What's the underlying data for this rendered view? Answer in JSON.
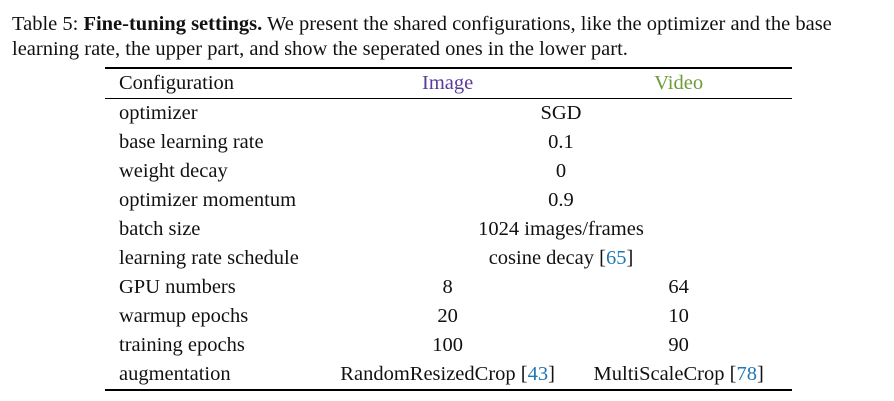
{
  "caption": {
    "label": "Table 5:",
    "title": "Fine-tuning settings.",
    "text": "We present the shared configurations, like the optimizer and the base learning rate, the upper part, and show the seperated ones in the lower part."
  },
  "table": {
    "headers": {
      "config": "Configuration",
      "image": "Image",
      "video": "Video"
    },
    "shared_rows": [
      {
        "name": "optimizer",
        "value": "SGD",
        "cite": ""
      },
      {
        "name": "base learning rate",
        "value": "0.1",
        "cite": ""
      },
      {
        "name": "weight decay",
        "value": "0",
        "cite": ""
      },
      {
        "name": "optimizer momentum",
        "value": "0.9",
        "cite": ""
      },
      {
        "name": "batch size",
        "value": "1024 images/frames",
        "cite": ""
      },
      {
        "name": "learning rate schedule",
        "value": "cosine decay",
        "cite": "65"
      }
    ],
    "split_rows": [
      {
        "name": "GPU numbers",
        "image": "8",
        "image_cite": "",
        "video": "64",
        "video_cite": ""
      },
      {
        "name": "warmup epochs",
        "image": "20",
        "image_cite": "",
        "video": "10",
        "video_cite": ""
      },
      {
        "name": "training epochs",
        "image": "100",
        "image_cite": "",
        "video": "90",
        "video_cite": ""
      },
      {
        "name": "augmentation",
        "image": "RandomResizedCrop",
        "image_cite": "43",
        "video": "MultiScaleCrop",
        "video_cite": "78"
      }
    ],
    "colors": {
      "image_header": "#5a3b9a",
      "video_header": "#6f9a3a",
      "citation": "#1f77b4"
    }
  }
}
